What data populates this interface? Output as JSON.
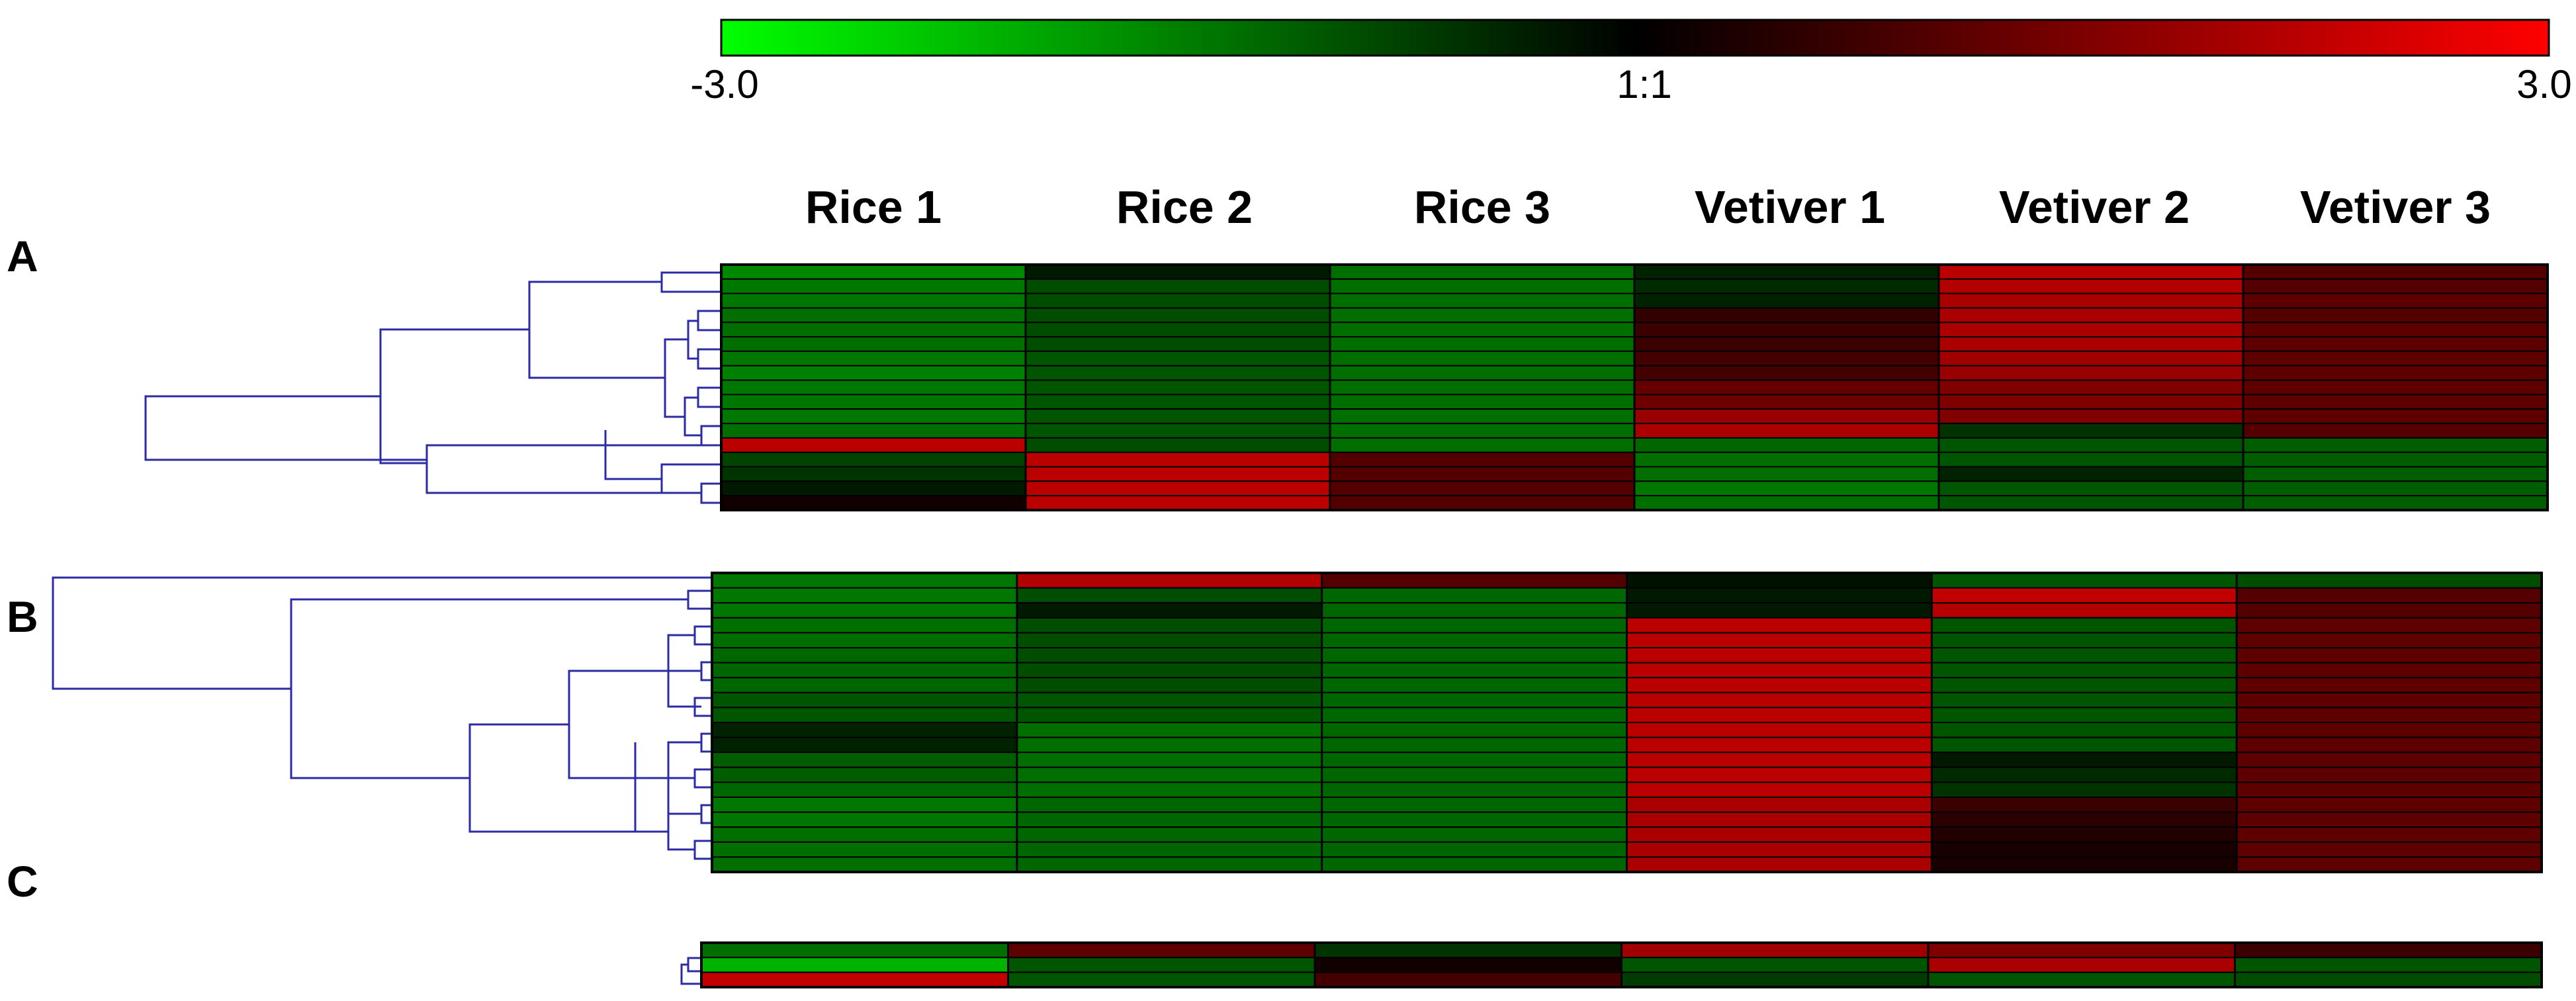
{
  "chart_data": {
    "type": "heatmap",
    "color_scale": {
      "min": -3.0,
      "max": 3.0,
      "min_label": "-3.0",
      "mid_label": "1:1",
      "max_label": "3.0",
      "low_color": "#00ff00",
      "mid_color": "#000000",
      "high_color": "#ff0000"
    },
    "columns": [
      "Rice 1",
      "Rice 2",
      "Rice 3",
      "Vetiver 1",
      "Vetiver 2",
      "Vetiver 3"
    ],
    "panels": [
      {
        "label": "A",
        "rows": [
          [
            -1.6,
            -0.3,
            -1.3,
            -0.4,
            2.2,
            1.0
          ],
          [
            -1.4,
            -0.9,
            -1.3,
            -0.5,
            2.1,
            1.0
          ],
          [
            -1.4,
            -0.9,
            -1.3,
            -0.4,
            2.0,
            1.1
          ],
          [
            -1.3,
            -0.9,
            -1.3,
            0.6,
            2.0,
            1.0
          ],
          [
            -1.3,
            -0.9,
            -1.3,
            0.7,
            2.0,
            1.1
          ],
          [
            -1.3,
            -0.9,
            -1.3,
            0.7,
            2.0,
            1.1
          ],
          [
            -1.4,
            -1.0,
            -1.3,
            0.8,
            1.9,
            1.1
          ],
          [
            -1.5,
            -1.0,
            -1.3,
            0.8,
            1.8,
            1.1
          ],
          [
            -1.4,
            -1.0,
            -1.3,
            1.2,
            1.5,
            1.1
          ],
          [
            -1.4,
            -1.0,
            -1.3,
            1.3,
            1.5,
            1.1
          ],
          [
            -1.4,
            -1.0,
            -1.3,
            1.8,
            1.5,
            1.1
          ],
          [
            -1.3,
            -1.0,
            -1.3,
            2.0,
            -0.6,
            1.0
          ],
          [
            2.2,
            -0.9,
            -1.3,
            -1.2,
            -1.0,
            -1.1
          ],
          [
            -0.8,
            2.2,
            1.0,
            -1.3,
            -1.0,
            -1.1
          ],
          [
            -0.6,
            2.2,
            1.0,
            -1.3,
            -0.4,
            -1.1
          ],
          [
            -0.3,
            2.2,
            1.0,
            -1.4,
            -1.0,
            -1.1
          ],
          [
            0.2,
            2.2,
            1.0,
            -1.3,
            -1.0,
            -1.1
          ]
        ]
      },
      {
        "label": "B",
        "rows": [
          [
            -1.4,
            2.1,
            1.0,
            -0.2,
            -1.0,
            -0.9
          ],
          [
            -1.4,
            -0.9,
            -1.2,
            -0.3,
            2.3,
            1.0
          ],
          [
            -1.4,
            -0.3,
            -1.2,
            -0.3,
            2.1,
            1.0
          ],
          [
            -1.3,
            -0.9,
            -1.2,
            2.2,
            -1.0,
            1.1
          ],
          [
            -1.3,
            -0.9,
            -1.2,
            2.2,
            -1.0,
            1.1
          ],
          [
            -1.2,
            -0.9,
            -1.2,
            2.2,
            -1.0,
            1.1
          ],
          [
            -1.2,
            -0.9,
            -1.2,
            2.2,
            -1.0,
            1.1
          ],
          [
            -1.2,
            -0.9,
            -1.2,
            2.2,
            -1.0,
            1.1
          ],
          [
            -1.0,
            -1.0,
            -1.2,
            2.2,
            -1.0,
            1.1
          ],
          [
            -1.0,
            -1.0,
            -1.2,
            2.2,
            -1.0,
            1.1
          ],
          [
            -0.4,
            -1.3,
            -1.2,
            2.2,
            -1.0,
            1.1
          ],
          [
            -0.4,
            -1.3,
            -1.2,
            2.2,
            -1.0,
            1.1
          ],
          [
            -1.1,
            -1.3,
            -1.2,
            2.2,
            -0.3,
            1.1
          ],
          [
            -1.1,
            -1.3,
            -1.2,
            2.2,
            -0.5,
            1.1
          ],
          [
            -1.2,
            -1.3,
            -1.2,
            2.2,
            -0.6,
            1.1
          ],
          [
            -1.4,
            -1.2,
            -1.2,
            2.0,
            0.7,
            1.1
          ],
          [
            -1.4,
            -1.2,
            -1.2,
            2.0,
            0.5,
            1.1
          ],
          [
            -1.3,
            -1.2,
            -1.2,
            2.0,
            0.4,
            1.1
          ],
          [
            -1.3,
            -1.2,
            -1.2,
            2.0,
            0.3,
            1.1
          ],
          [
            -1.3,
            -1.2,
            -1.2,
            2.0,
            0.3,
            1.1
          ]
        ]
      },
      {
        "label": "C",
        "rows": [
          [
            -1.3,
            1.1,
            -0.6,
            1.9,
            1.5,
            0.7
          ],
          [
            -2.1,
            -1.0,
            0.2,
            -1.0,
            2.0,
            -1.0
          ],
          [
            2.3,
            -1.0,
            0.8,
            -0.7,
            -1.0,
            -0.9
          ]
        ]
      }
    ]
  }
}
